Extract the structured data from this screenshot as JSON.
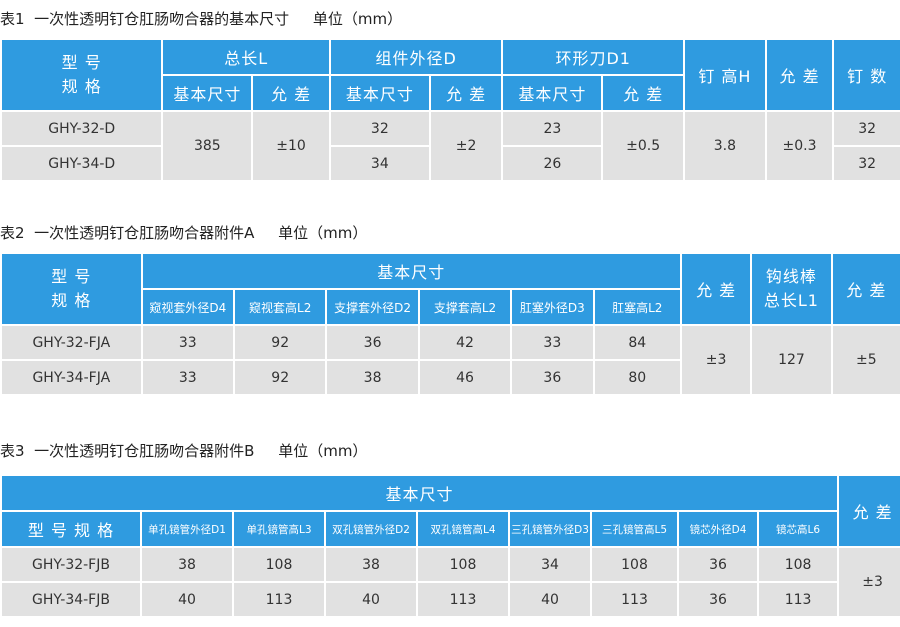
{
  "table1": {
    "caption": "表1  一次性透明钉仓肛肠吻合器的基本尺寸     单位（mm）",
    "h_model": "型 号\n规 格",
    "h_total_len": "总长L",
    "h_comp_od": "组件外径D",
    "h_ring_knife": "环形刀D1",
    "h_nail_height": "钉 高H",
    "h_tol": "允 差",
    "h_nail_count": "钉 数",
    "h_basic": "基本尺寸",
    "h_tol2": "允 差",
    "rows": [
      {
        "model": "GHY-32-D",
        "total": "385",
        "total_tol": "±10",
        "od": "32",
        "od_tol": "±2",
        "ring": "23",
        "ring_tol": "±0.5",
        "height": "3.8",
        "height_tol": "±0.3",
        "count": "32"
      },
      {
        "model": "GHY-34-D",
        "od": "34",
        "ring": "26",
        "count": "32"
      }
    ]
  },
  "table2": {
    "caption": "表2  一次性透明钉仓肛肠吻合器附件A     单位（mm）",
    "h_model": "型 号\n规 格",
    "h_basic": "基本尺寸",
    "h_tol": "允 差",
    "h_hook": "钩线棒\n总长L1",
    "h_tol2": "允 差",
    "sub": [
      "窥视套外径D4",
      "窥视套高L2",
      "支撑套外径D2",
      "支撑套高L2",
      "肛塞外径D3",
      "肛塞高L2"
    ],
    "rows": [
      {
        "model": "GHY-32-FJA",
        "vals": [
          "33",
          "92",
          "36",
          "42",
          "33",
          "84"
        ]
      },
      {
        "model": "GHY-34-FJA",
        "vals": [
          "33",
          "92",
          "38",
          "46",
          "36",
          "80"
        ]
      }
    ],
    "tol": "±3",
    "hook_len": "127",
    "hook_tol": "±5"
  },
  "table3": {
    "caption": "表3  一次性透明钉仓肛肠吻合器附件B     单位（mm）",
    "h_basic": "基本尺寸",
    "h_tol": "允 差",
    "h_model": "型 号 规 格",
    "sub": [
      "单孔镜管外径D1",
      "单孔镜管高L3",
      "双孔镜管外径D2",
      "双孔镜管高L4",
      "三孔镜管外径D3",
      "三孔镜管高L5",
      "镜芯外径D4",
      "镜芯高L6"
    ],
    "rows": [
      {
        "model": "GHY-32-FJB",
        "vals": [
          "38",
          "108",
          "38",
          "108",
          "34",
          "108",
          "36",
          "108"
        ]
      },
      {
        "model": "GHY-34-FJB",
        "vals": [
          "40",
          "113",
          "40",
          "113",
          "40",
          "113",
          "36",
          "113"
        ]
      }
    ],
    "tol": "±3"
  }
}
